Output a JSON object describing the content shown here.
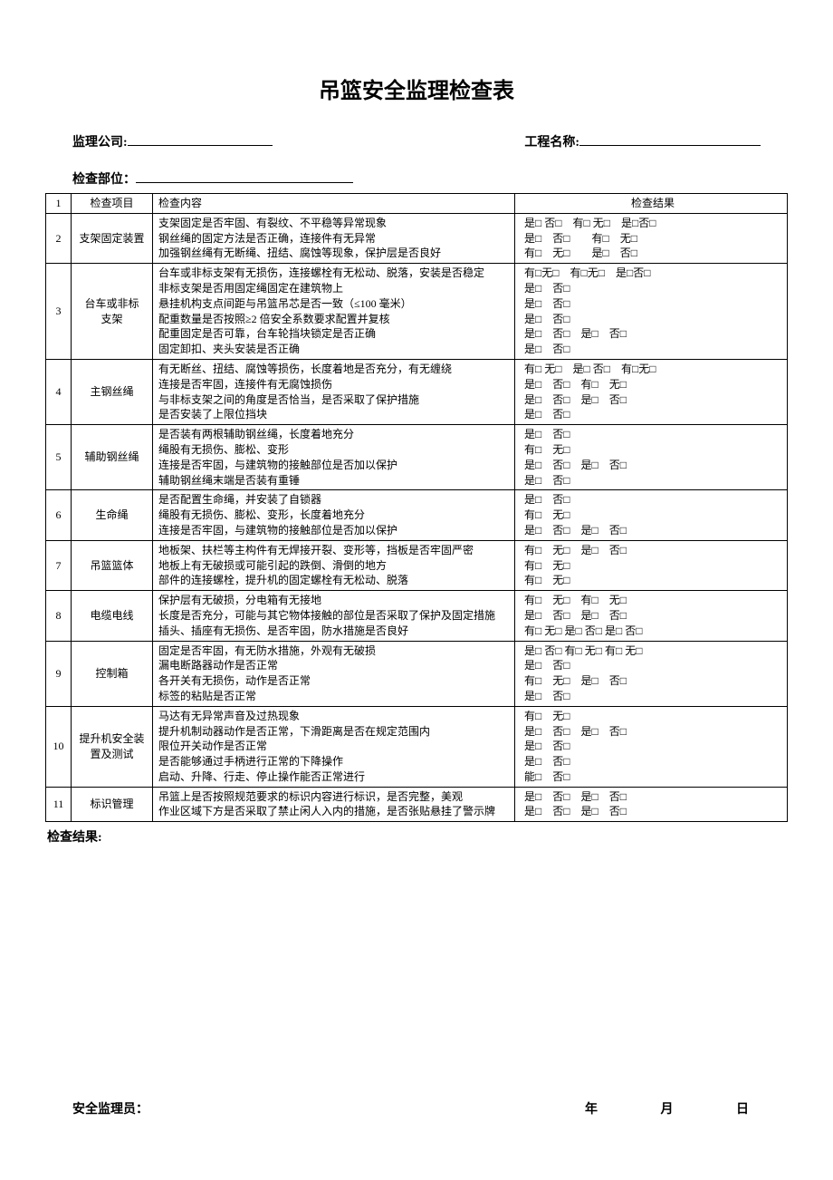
{
  "title": "吊篮安全监理检查表",
  "labels": {
    "company": "监理公司:",
    "project": "工程名称:",
    "location": "检查部位：",
    "col_num_first": "1",
    "col_item": "检查项目",
    "col_content": "检查内容",
    "col_result": "检查结果",
    "result_footer": "检查结果:",
    "inspector": "安全监理员：",
    "year": "年",
    "month": "月",
    "day": "日"
  },
  "rows": [
    {
      "num": "2",
      "item": "支架固定装置",
      "contents": [
        "支架固定是否牢固、有裂纹、不平稳等异常现象",
        "钢丝绳的固定方法是否正确，连接件有无异常",
        "加强钢丝绳有无断绳、扭结、腐蚀等现象，保护层是否良好"
      ],
      "results": [
        "是□ 否□　有□ 无□　是□否□",
        "是□　否□　　有□　无□",
        "有□　无□　　是□　否□"
      ]
    },
    {
      "num": "3",
      "item": "台车或非标\n支架",
      "contents": [
        "台车或非标支架有无损伤，连接螺栓有无松动、脱落，安装是否稳定",
        "非标支架是否用固定绳固定在建筑物上",
        "悬挂机构支点间距与吊篮吊芯是否一致（≤100 毫米）",
        "配重数量是否按照≥2 倍安全系数要求配置并复核",
        "配重固定是否可靠，台车轮挡块锁定是否正确",
        "固定卸扣、夹头安装是否正确"
      ],
      "results": [
        "有□无□　有□无□　是□否□",
        "是□　否□",
        "是□　否□",
        "是□　否□",
        "是□　否□　是□　否□",
        "是□　否□"
      ]
    },
    {
      "num": "4",
      "item": "主钢丝绳",
      "contents": [
        "有无断丝、扭结、腐蚀等损伤，长度着地是否充分，有无缠绕",
        "连接是否牢固，连接件有无腐蚀损伤",
        "与非标支架之间的角度是否恰当，是否采取了保护措施",
        "是否安装了上限位挡块"
      ],
      "results": [
        "有□ 无□　是□ 否□　有□无□",
        "是□　否□　有□　无□",
        "是□　否□　是□　否□",
        "是□　否□"
      ]
    },
    {
      "num": "5",
      "item": "辅助钢丝绳",
      "contents": [
        "是否装有两根辅助钢丝绳，长度着地充分",
        "绳股有无损伤、膨松、变形",
        "连接是否牢固，与建筑物的接触部位是否加以保护",
        "辅助钢丝绳末端是否装有重锤"
      ],
      "results": [
        "是□　否□",
        "有□　无□",
        "是□　否□　是□　否□",
        "是□　否□"
      ]
    },
    {
      "num": "6",
      "item": "生命绳",
      "contents": [
        "是否配置生命绳，并安装了自锁器",
        "绳股有无损伤、膨松、变形，长度着地充分",
        "连接是否牢固，与建筑物的接触部位是否加以保护"
      ],
      "results": [
        "是□　否□",
        "有□　无□",
        "是□　否□　是□　否□"
      ]
    },
    {
      "num": "7",
      "item": "吊篮篮体",
      "contents": [
        "地板架、扶栏等主构件有无焊接开裂、变形等，挡板是否牢固严密",
        "地板上有无破损或可能引起的跌倒、滑倒的地方",
        "部件的连接螺栓，提升机的固定螺栓有无松动、脱落"
      ],
      "results": [
        "有□　无□　是□　否□",
        "有□　无□",
        "有□　无□"
      ]
    },
    {
      "num": "8",
      "item": "电缆电线",
      "contents": [
        "保护层有无破损，分电箱有无接地",
        "长度是否充分，可能与其它物体接触的部位是否采取了保护及固定措施",
        "插头、插座有无损伤、是否牢固，防水措施是否良好"
      ],
      "results": [
        "有□　无□　有□　无□",
        "是□　否□　是□　否□",
        "有□ 无□ 是□ 否□ 是□ 否□"
      ]
    },
    {
      "num": "9",
      "item": "控制箱",
      "contents": [
        "固定是否牢固，有无防水措施，外观有无破损",
        "漏电断路器动作是否正常",
        "各开关有无损伤，动作是否正常",
        "标签的粘贴是否正常"
      ],
      "results": [
        "是□ 否□ 有□ 无□ 有□ 无□",
        "是□　否□",
        "有□　无□　是□　否□",
        "是□　否□"
      ]
    },
    {
      "num": "10",
      "item": "提升机安全装\n置及测试",
      "contents": [
        "马达有无异常声音及过热现象",
        "提升机制动器动作是否正常，下滑距离是否在规定范围内",
        "限位开关动作是否正常",
        "是否能够通过手柄进行正常的下降操作",
        "启动、升降、行走、停止操作能否正常进行"
      ],
      "results": [
        "有□　无□",
        "是□　否□　是□　否□",
        "是□　否□",
        "是□　否□",
        "能□　否□"
      ]
    },
    {
      "num": "11",
      "item": "标识管理",
      "contents": [
        "吊篮上是否按照规范要求的标识内容进行标识，是否完整，美观",
        "作业区域下方是否采取了禁止闲人入内的措施，是否张贴悬挂了警示牌"
      ],
      "results": [
        "是□　否□　是□　否□",
        "是□　否□　是□　否□"
      ]
    }
  ]
}
